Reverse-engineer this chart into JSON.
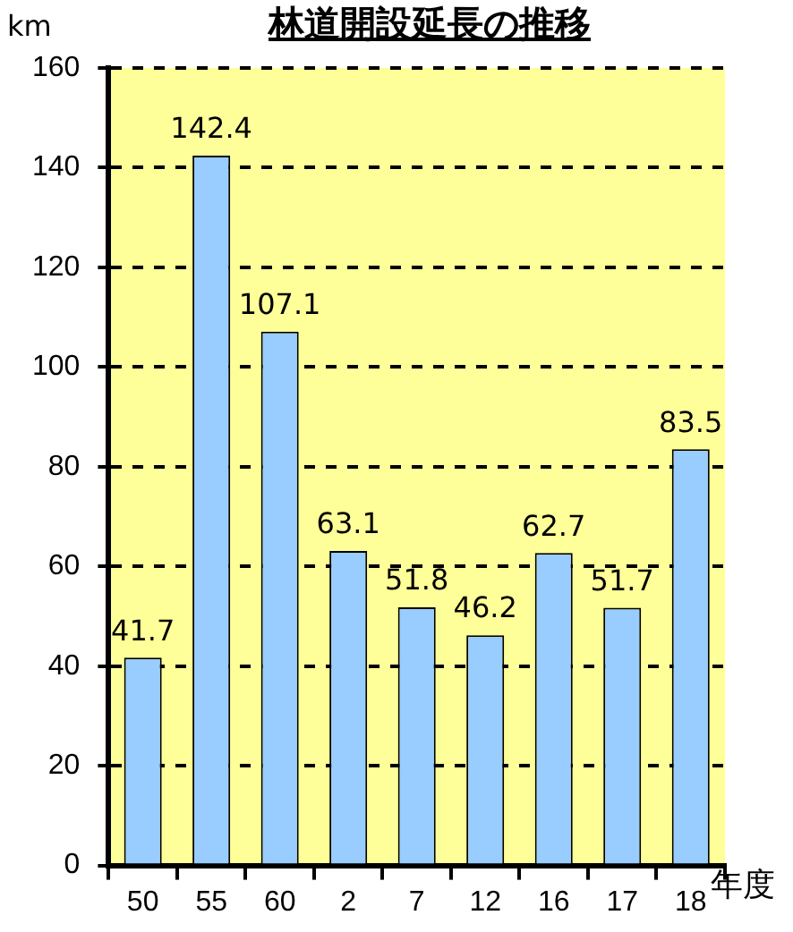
{
  "chart_data": {
    "type": "bar",
    "title": "林道開設延長の推移",
    "ylabel": "km",
    "xlabel": "年度",
    "categories": [
      "50",
      "55",
      "60",
      "2",
      "7",
      "12",
      "16",
      "17",
      "18"
    ],
    "values": [
      41.7,
      142.4,
      107.1,
      63.1,
      51.8,
      46.2,
      62.7,
      51.7,
      83.5
    ],
    "color": "#99ccff",
    "ylim": [
      0,
      160
    ],
    "yticks": [
      0,
      20,
      40,
      60,
      80,
      100,
      120,
      140,
      160
    ],
    "grid": "y",
    "data_labels": true,
    "legend": false
  }
}
